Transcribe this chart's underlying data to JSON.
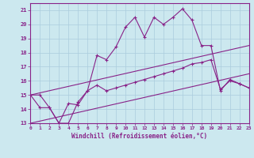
{
  "xlabel": "Windchill (Refroidissement éolien,°C)",
  "bg_color": "#cce8ef",
  "grid_color": "#aaccdd",
  "line_color": "#882288",
  "xlim": [
    0,
    23
  ],
  "ylim": [
    13,
    21.5
  ],
  "xticks": [
    0,
    1,
    2,
    3,
    4,
    5,
    6,
    7,
    8,
    9,
    10,
    11,
    12,
    13,
    14,
    15,
    16,
    17,
    18,
    19,
    20,
    21,
    22,
    23
  ],
  "yticks": [
    13,
    14,
    15,
    16,
    17,
    18,
    19,
    20,
    21
  ],
  "line1_x": [
    0,
    1,
    2,
    3,
    4,
    5,
    6,
    7,
    8,
    9,
    10,
    11,
    12,
    13,
    14,
    15,
    16,
    17,
    18,
    19,
    20,
    21,
    22,
    23
  ],
  "line1_y": [
    15.0,
    15.0,
    14.1,
    13.0,
    13.0,
    14.5,
    15.3,
    17.8,
    17.5,
    18.4,
    19.8,
    20.5,
    19.1,
    20.5,
    20.0,
    20.5,
    21.1,
    20.3,
    18.5,
    18.5,
    15.3,
    16.1,
    15.8,
    15.5
  ],
  "line2_x": [
    0,
    1,
    2,
    3,
    4,
    5,
    6,
    7,
    8,
    9,
    10,
    11,
    12,
    13,
    14,
    15,
    16,
    17,
    18,
    19,
    20,
    21,
    22,
    23
  ],
  "line2_y": [
    15.0,
    14.1,
    14.1,
    13.0,
    14.4,
    14.3,
    15.3,
    15.7,
    15.3,
    15.5,
    15.7,
    15.9,
    16.1,
    16.3,
    16.5,
    16.7,
    16.9,
    17.2,
    17.3,
    17.5,
    15.4,
    16.0,
    15.8,
    15.5
  ],
  "line3_x": [
    0,
    23
  ],
  "line3_y": [
    15.0,
    18.5
  ],
  "line4_x": [
    0,
    23
  ],
  "line4_y": [
    13.0,
    16.5
  ]
}
